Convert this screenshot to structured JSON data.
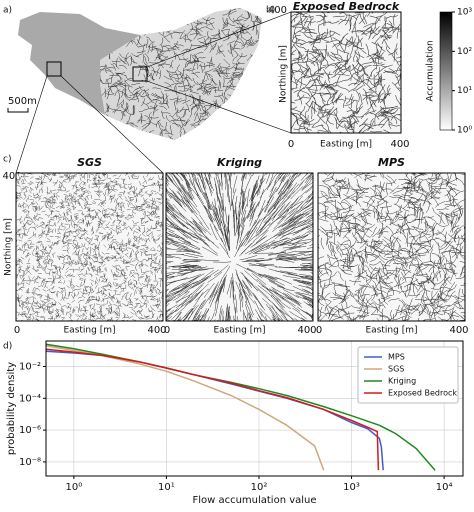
{
  "panel_a": {
    "label": "a)",
    "scale_bar": "500m"
  },
  "panel_b": {
    "label": "b)",
    "title": "Exposed Bedrock",
    "y_label": "Northing [m]",
    "y_max": "400",
    "x_label": "Easting [m]",
    "x_min": "0",
    "x_max": "400",
    "colorbar": {
      "label": "Accumulation",
      "lim": [
        1,
        1000
      ],
      "ticks": [
        {
          "value": 1,
          "label": "10⁰"
        },
        {
          "value": 10,
          "label": "10¹"
        },
        {
          "value": 100,
          "label": "10²"
        },
        {
          "value": 1000,
          "label": "10³"
        }
      ]
    }
  },
  "panel_c": {
    "label": "c)",
    "y_label": "Northing [m]",
    "y_max": "400",
    "maps": [
      {
        "title": "SGS",
        "x_label": "Easting [m]",
        "x_min": "0",
        "x_max": "400"
      },
      {
        "title": "Kriging",
        "x_label": "Easting [m]",
        "x_min": "0",
        "x_max": "400"
      },
      {
        "title": "MPS",
        "x_label": "Easting [m]",
        "x_min": "0",
        "x_max": "400"
      }
    ]
  },
  "chart_data": {
    "type": "line",
    "label": "d)",
    "x_label": "Flow accumulation value",
    "y_label": "probability density",
    "x_scale": "log",
    "y_scale": "log",
    "grid": true,
    "legend": "upper right",
    "xlim": [
      0.5,
      16000
    ],
    "ylim": [
      1.3e-09,
      0.4
    ],
    "xticks": [
      {
        "value": 1,
        "label": "10⁰"
      },
      {
        "value": 10,
        "label": "10¹"
      },
      {
        "value": 100,
        "label": "10²"
      },
      {
        "value": 1000,
        "label": "10³"
      },
      {
        "value": 10000,
        "label": "10⁴"
      }
    ],
    "yticks": [
      {
        "value": 1e-08,
        "label": "10⁻⁸"
      },
      {
        "value": 1e-06,
        "label": "10⁻⁶"
      },
      {
        "value": 0.0001,
        "label": "10⁻⁴"
      },
      {
        "value": 0.01,
        "label": "10⁻²"
      }
    ],
    "series": [
      {
        "name": "MPS",
        "color": "#3a5fcd",
        "x": [
          0.5,
          1,
          2,
          5,
          10,
          20,
          50,
          100,
          200,
          500,
          1000,
          1500,
          2000,
          2100,
          2200
        ],
        "values": [
          0.09,
          0.07,
          0.05,
          0.02,
          0.008,
          0.003,
          0.0008,
          0.00028,
          0.0001,
          2e-05,
          3e-06,
          1.2e-06,
          3e-07,
          8e-08,
          3e-09
        ]
      },
      {
        "name": "SGS",
        "color": "#d2a679",
        "x": [
          0.5,
          1,
          2,
          5,
          10,
          20,
          50,
          100,
          200,
          400,
          500
        ],
        "values": [
          0.2,
          0.1,
          0.05,
          0.015,
          0.005,
          0.0012,
          0.00015,
          2e-05,
          2e-06,
          1e-07,
          3e-09
        ]
      },
      {
        "name": "Kriging",
        "color": "#1e8a1e",
        "x": [
          0.5,
          1,
          2,
          5,
          10,
          20,
          50,
          100,
          200,
          500,
          1000,
          2000,
          3000,
          5000,
          8000
        ],
        "values": [
          0.25,
          0.13,
          0.06,
          0.02,
          0.008,
          0.003,
          0.001,
          0.0004,
          0.00015,
          3e-05,
          8e-06,
          2e-06,
          6e-07,
          7e-08,
          3e-09
        ]
      },
      {
        "name": "Exposed Bedrock",
        "color": "#d7191c",
        "x": [
          0.5,
          1,
          2,
          5,
          10,
          20,
          50,
          100,
          200,
          500,
          1000,
          1500,
          1900,
          1950
        ],
        "values": [
          0.12,
          0.08,
          0.05,
          0.02,
          0.008,
          0.003,
          0.0009,
          0.0003,
          0.00011,
          2e-05,
          4e-06,
          1.5e-06,
          8e-07,
          3e-09
        ]
      }
    ]
  }
}
